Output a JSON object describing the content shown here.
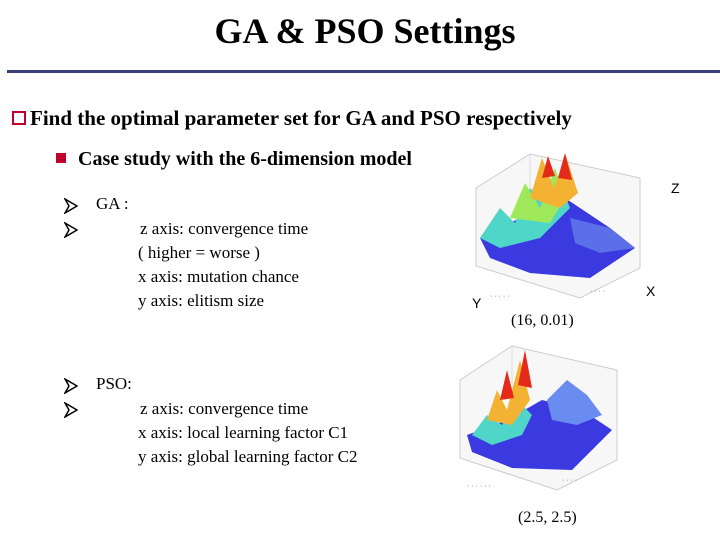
{
  "title": "GA & PSO Settings",
  "bullet1": "Find the optimal parameter set for GA and PSO respectively",
  "bullet2": "Case study with the 6-dimension model",
  "ga": {
    "label": "GA :",
    "z": "z axis: convergence time",
    "note": "( higher = worse )",
    "x": "x axis: mutation chance",
    "y": "y axis: elitism size",
    "fig_label_z": "Z",
    "fig_label_x": "X",
    "fig_label_y": "Y",
    "optimum": "(16, 0.01)"
  },
  "pso": {
    "label": "PSO:",
    "z": "z axis: convergence time",
    "x": "x axis: local learning factor C1",
    "y": "y axis: global learning factor C2",
    "optimum": "(2.5, 2.5)"
  },
  "colors": {
    "accent": "#c0002a",
    "rule": "#3a3f7a"
  }
}
